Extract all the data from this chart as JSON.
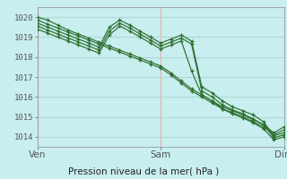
{
  "title": "Pression niveau de la mer( hPa )",
  "bg_color": "#c8eef0",
  "grid_color_v": "#f0aaaa",
  "grid_color_h": "#b0d8d0",
  "line_color": "#2d6e2d",
  "ylim": [
    1013.5,
    1020.5
  ],
  "yticks": [
    1014,
    1015,
    1016,
    1017,
    1018,
    1019,
    1020
  ],
  "xtick_labels": [
    "Ven",
    "Sam",
    "Dim"
  ],
  "xtick_positions": [
    0,
    48,
    96
  ],
  "xlim": [
    0,
    96
  ],
  "series": [
    [
      0,
      1020.0,
      4,
      1019.85,
      8,
      1019.6,
      12,
      1019.35,
      16,
      1019.15,
      20,
      1018.95,
      24,
      1018.75,
      28,
      1018.55,
      32,
      1018.35,
      36,
      1018.15,
      40,
      1017.95,
      44,
      1017.75,
      48,
      1017.55,
      52,
      1017.2,
      56,
      1016.8,
      60,
      1016.4,
      64,
      1016.1,
      68,
      1015.8,
      72,
      1015.5,
      76,
      1015.3,
      80,
      1015.1,
      84,
      1014.85,
      88,
      1014.6,
      92,
      1014.2,
      96,
      1014.5
    ],
    [
      0,
      1019.85,
      4,
      1019.65,
      8,
      1019.45,
      12,
      1019.25,
      16,
      1019.05,
      20,
      1018.85,
      24,
      1018.65,
      28,
      1018.45,
      32,
      1018.25,
      36,
      1018.05,
      40,
      1017.85,
      44,
      1017.65,
      48,
      1017.45,
      52,
      1017.1,
      56,
      1016.7,
      60,
      1016.3,
      64,
      1016.0,
      68,
      1015.7,
      72,
      1015.4,
      76,
      1015.2,
      80,
      1015.0,
      84,
      1014.75,
      88,
      1014.5,
      92,
      1014.1,
      96,
      1014.35
    ],
    [
      0,
      1019.7,
      4,
      1019.5,
      8,
      1019.3,
      12,
      1019.1,
      16,
      1018.9,
      20,
      1018.7,
      24,
      1018.5,
      28,
      1019.5,
      32,
      1019.85,
      36,
      1019.6,
      40,
      1019.3,
      44,
      1019.0,
      48,
      1018.7,
      52,
      1018.9,
      56,
      1019.1,
      60,
      1018.8,
      64,
      1016.5,
      68,
      1016.2,
      72,
      1015.8,
      76,
      1015.5,
      80,
      1015.3,
      84,
      1015.1,
      88,
      1014.75,
      92,
      1014.05,
      96,
      1014.2
    ],
    [
      0,
      1019.55,
      4,
      1019.35,
      8,
      1019.15,
      12,
      1018.95,
      16,
      1018.75,
      20,
      1018.55,
      24,
      1018.35,
      28,
      1019.3,
      32,
      1019.7,
      36,
      1019.45,
      40,
      1019.15,
      44,
      1018.85,
      48,
      1018.55,
      52,
      1018.75,
      56,
      1018.95,
      60,
      1018.65,
      64,
      1016.3,
      68,
      1016.0,
      72,
      1015.6,
      76,
      1015.35,
      80,
      1015.15,
      84,
      1014.9,
      88,
      1014.6,
      92,
      1013.95,
      96,
      1014.1
    ],
    [
      0,
      1019.4,
      4,
      1019.2,
      8,
      1019.0,
      12,
      1018.8,
      16,
      1018.6,
      20,
      1018.4,
      24,
      1018.2,
      28,
      1019.1,
      32,
      1019.55,
      36,
      1019.3,
      40,
      1019.0,
      44,
      1018.7,
      48,
      1018.4,
      52,
      1018.6,
      56,
      1018.8,
      60,
      1017.3,
      64,
      1016.1,
      68,
      1015.8,
      72,
      1015.4,
      76,
      1015.15,
      80,
      1014.95,
      84,
      1014.7,
      88,
      1014.4,
      92,
      1013.85,
      96,
      1014.0
    ]
  ]
}
